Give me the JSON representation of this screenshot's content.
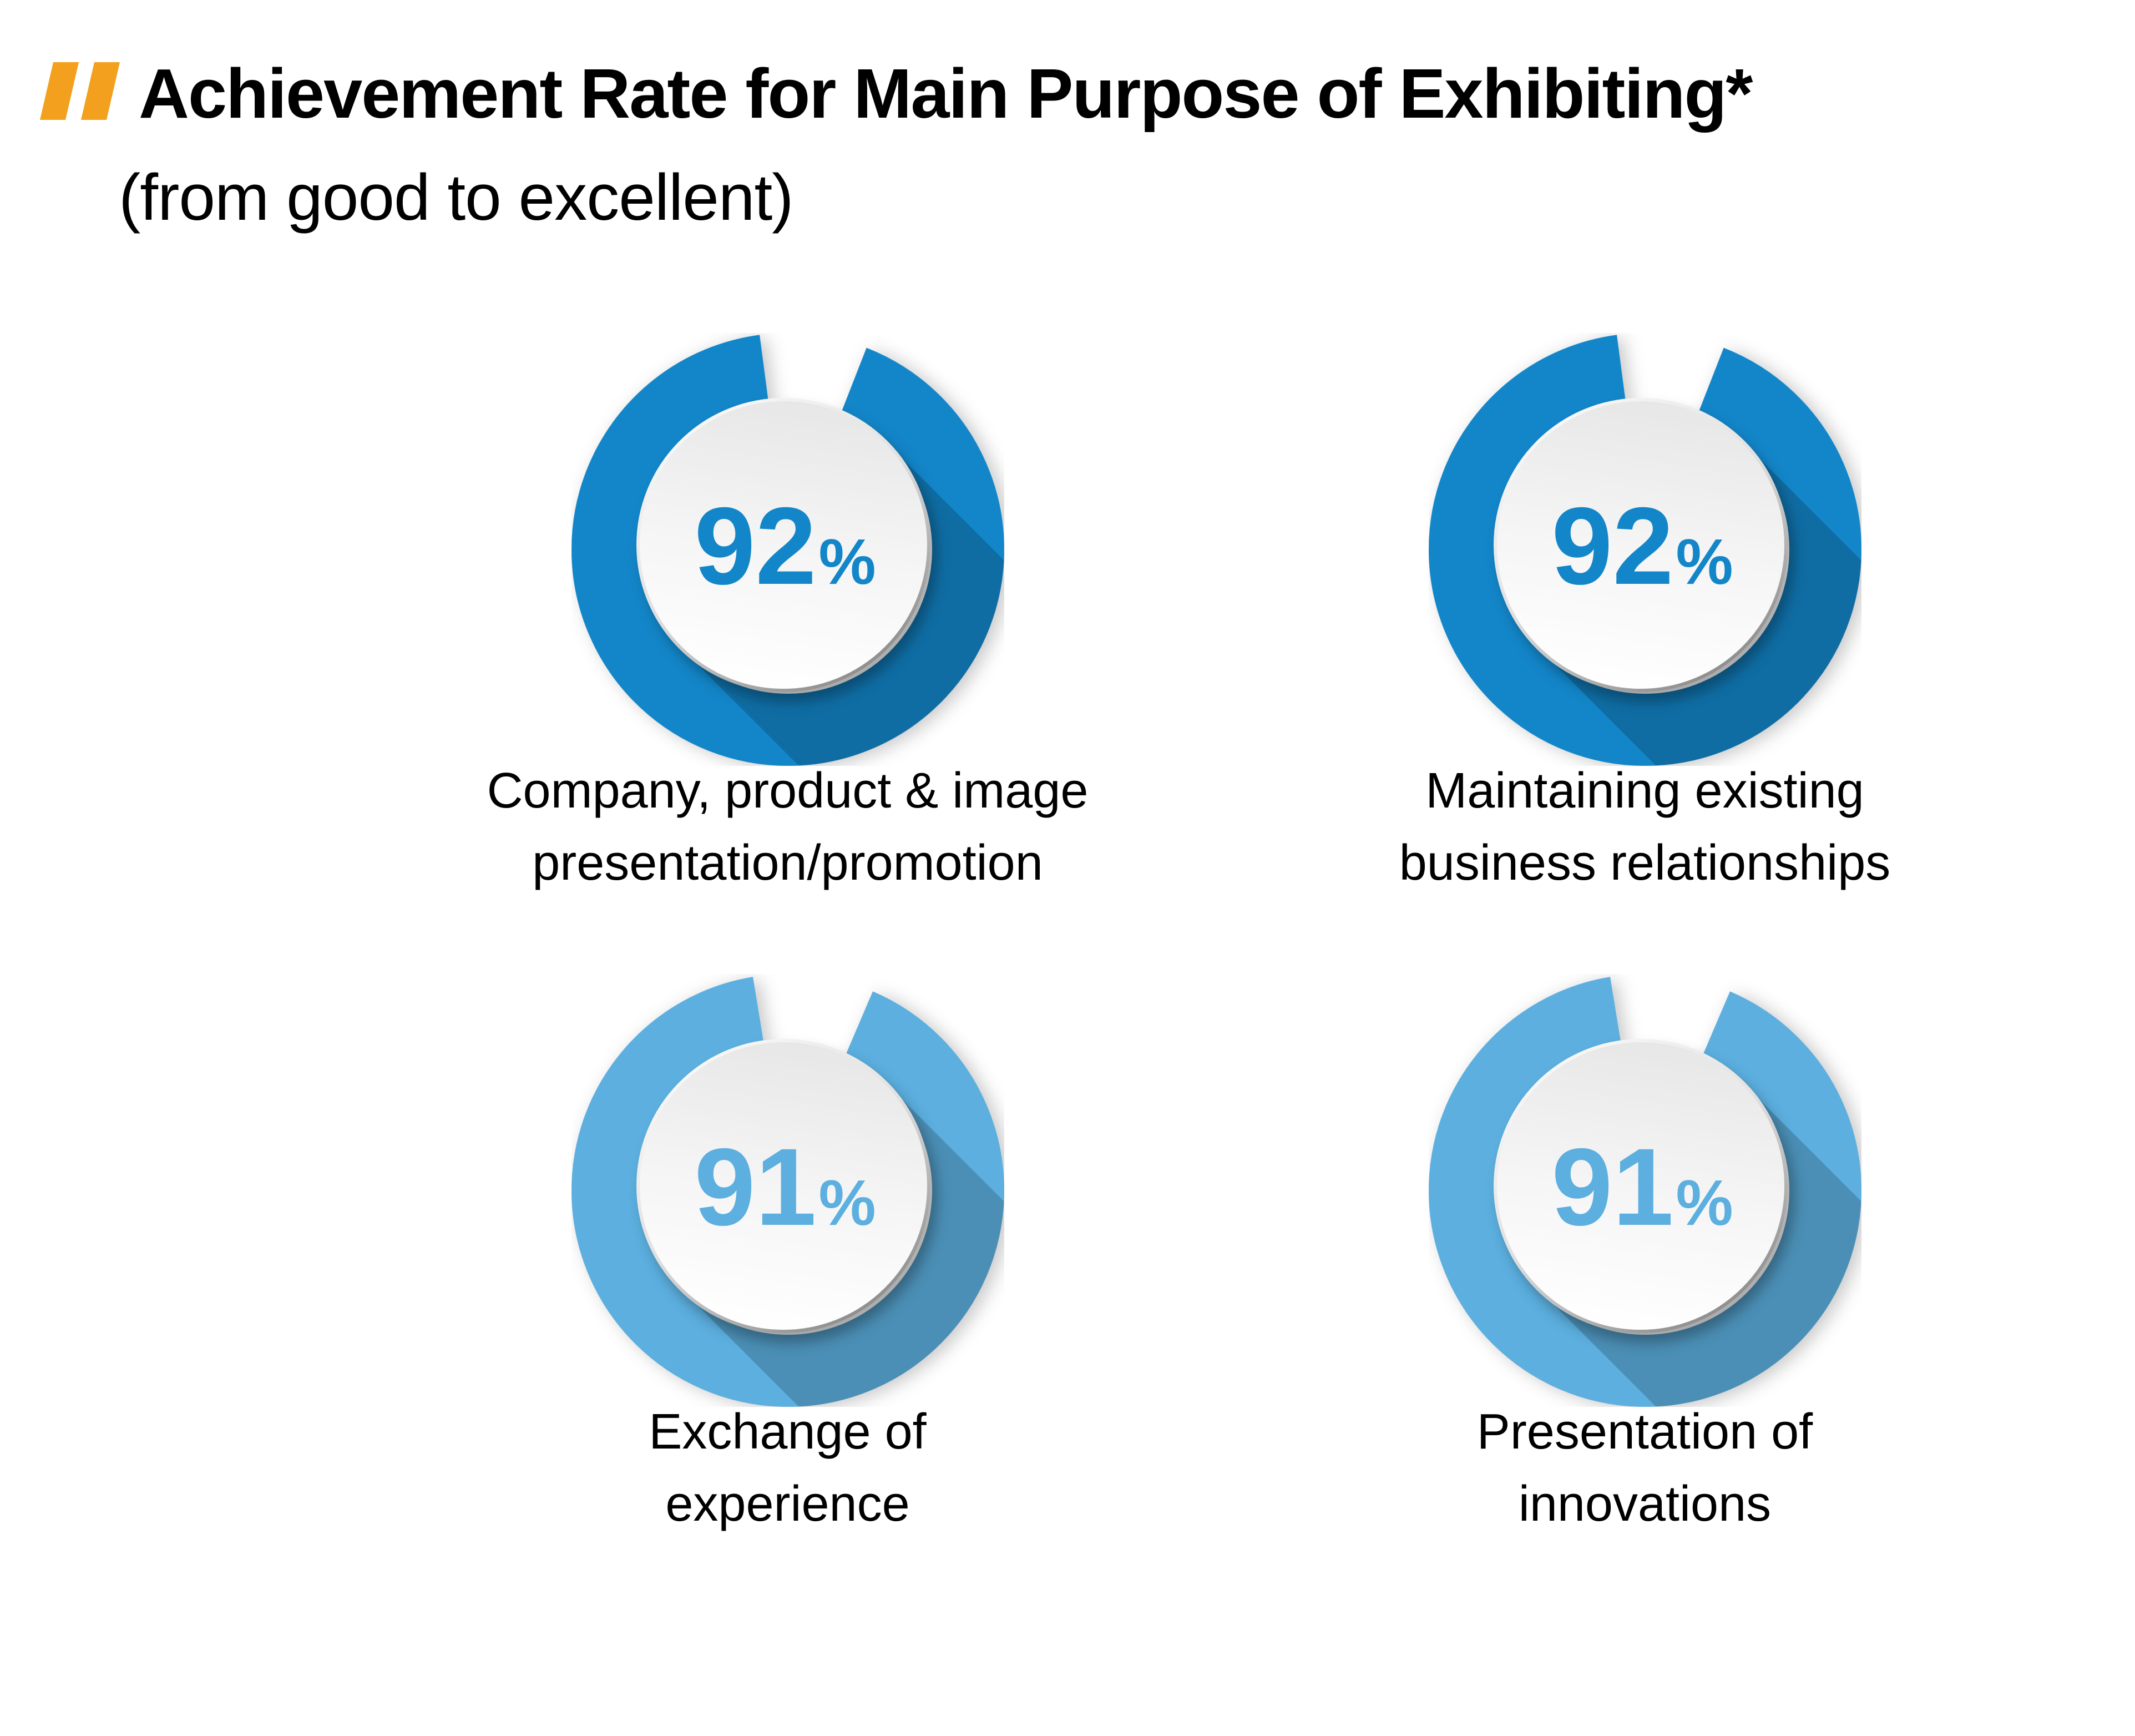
{
  "page": {
    "title": "Achievement Rate for Main Purpose of Exhibiting*",
    "subtitle": "(from good to excellent)",
    "marker_color": "#F2A01E",
    "background": "#FFFFFF"
  },
  "chart_data": {
    "type": "donut",
    "unit": "%",
    "legend_position": "none",
    "value_range": [
      0,
      100
    ],
    "items": [
      {
        "label": [
          "Company, product & image",
          "presentation/promotion"
        ],
        "value": 92,
        "color": "#1386C9"
      },
      {
        "label": [
          "Maintaining existing",
          "business relationships"
        ],
        "value": 92,
        "color": "#1386C9"
      },
      {
        "label": [
          "Exchange of",
          "experience"
        ],
        "value": 91,
        "color": "#5CAFDF"
      },
      {
        "label": [
          "Presentation of",
          "innovations"
        ],
        "value": 91,
        "color": "#5CAFDF"
      }
    ]
  }
}
